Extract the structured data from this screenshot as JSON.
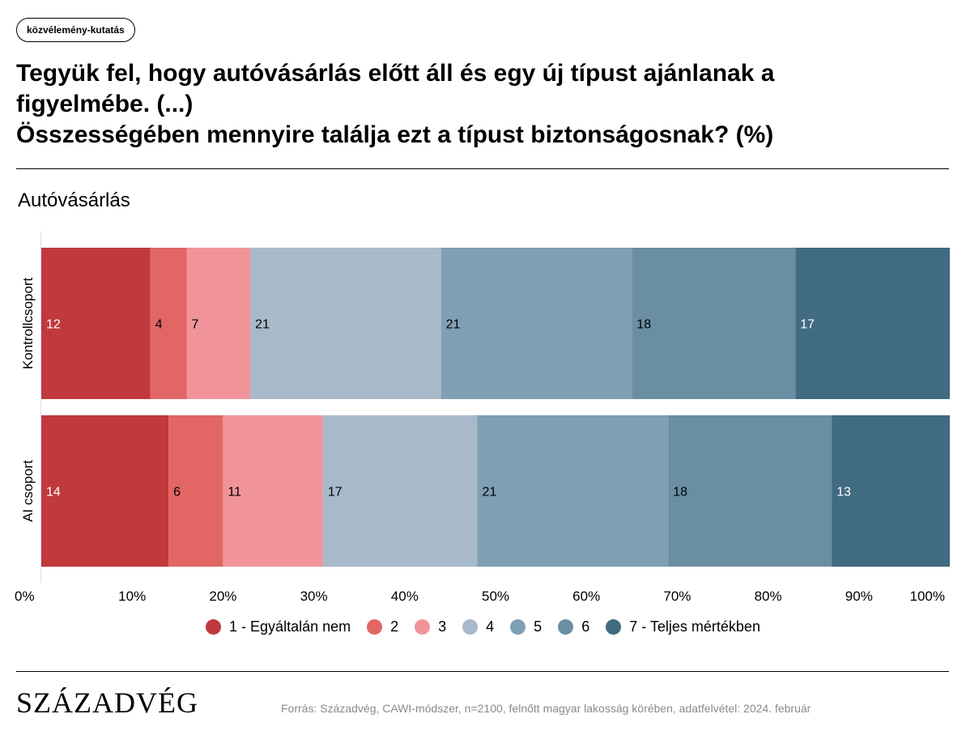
{
  "tag": "közvélemény-kutatás",
  "title_lines": [
    "Tegyük fel, hogy autóvásárlás előtt áll és egy új típust ajánlanak a",
    "figyelmébe. (...)",
    "Összességében mennyire találja ezt a típust biztonságosnak? (%)"
  ],
  "subtitle": "Autóvásárlás",
  "chart_data": {
    "type": "bar",
    "orientation": "horizontal",
    "stacked": true,
    "categories": [
      "Kontrollcsoport",
      "AI csoport"
    ],
    "series": [
      {
        "name": "1 - Egyáltalán nem",
        "color": "#c0393c",
        "values": [
          12,
          14
        ],
        "labels": [
          "12",
          "14"
        ]
      },
      {
        "name": "2",
        "color": "#e26664",
        "values": [
          4,
          6
        ],
        "labels": [
          "4",
          "6"
        ]
      },
      {
        "name": "3",
        "color": "#f0949a",
        "values": [
          7,
          11
        ],
        "labels": [
          "7",
          "11"
        ]
      },
      {
        "name": "4",
        "color": "#a8b9ca",
        "values": [
          21,
          17
        ],
        "labels": [
          "21",
          "17"
        ]
      },
      {
        "name": "5",
        "color": "#7f9fb4",
        "values": [
          21,
          21
        ],
        "labels": [
          "21",
          "21"
        ]
      },
      {
        "name": "6",
        "color": "#6a8fa3",
        "values": [
          18,
          18
        ],
        "labels": [
          "18",
          "18"
        ]
      },
      {
        "name": "7 - Teljes mértékben",
        "color": "#406b81",
        "values": [
          17,
          13
        ],
        "labels": [
          "17",
          "13"
        ]
      }
    ],
    "label_colors": [
      "#ffffff",
      "#000000",
      "#000000",
      "#000000",
      "#000000",
      "#000000",
      "#ffffff"
    ],
    "x_ticks": [
      "0%",
      "10%",
      "20%",
      "30%",
      "40%",
      "50%",
      "60%",
      "70%",
      "80%",
      "90%",
      "100%"
    ],
    "xlim": [
      0,
      100
    ],
    "legend_position": "bottom"
  },
  "footer": {
    "logo": "SZÁZADVÉG",
    "source": "Forrás: Századvég, CAWI-módszer, n=2100, felnőtt magyar lakosság körében, adatfelvétel: 2024. február"
  }
}
